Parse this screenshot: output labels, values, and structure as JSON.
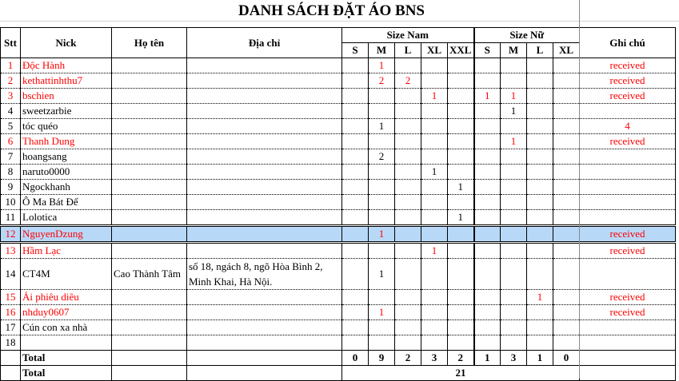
{
  "title": "DANH SÁCH ĐẶT ÁO BNS",
  "headers": {
    "stt": "Stt",
    "nick": "Nick",
    "name": "Họ tên",
    "address": "Địa chỉ",
    "size_nam": "Size Nam",
    "size_nu": "Size Nữ",
    "note": "Ghi chú",
    "nam_sizes": [
      "S",
      "M",
      "L",
      "XL",
      "XXL"
    ],
    "nu_sizes": [
      "S",
      "M",
      "L",
      "XL"
    ]
  },
  "colors": {
    "received": "#ff0000",
    "selected_row": "#b8d8f8"
  },
  "rows": [
    {
      "stt": "1",
      "nick": "Độc Hành",
      "name": "",
      "address": "",
      "sizes": [
        "",
        "1",
        "",
        "",
        "",
        "",
        "",
        "",
        ""
      ],
      "note": "received",
      "red": true
    },
    {
      "stt": "2",
      "nick": "kethattinhthu7",
      "name": "",
      "address": "",
      "sizes": [
        "",
        "2",
        "2",
        "",
        "",
        "",
        "",
        "",
        ""
      ],
      "note": "received",
      "red": true
    },
    {
      "stt": "3",
      "nick": "bschien",
      "name": "",
      "address": "",
      "sizes": [
        "",
        "",
        "",
        "1",
        "",
        "1",
        "1",
        "",
        ""
      ],
      "note": "received",
      "red": true
    },
    {
      "stt": "4",
      "nick": "sweetzarbie",
      "name": "",
      "address": "",
      "sizes": [
        "",
        "",
        "",
        "",
        "",
        "",
        "1",
        "",
        ""
      ],
      "note": "",
      "red": false
    },
    {
      "stt": "5",
      "nick": "tóc quéo",
      "name": "",
      "address": "",
      "sizes": [
        "",
        "1",
        "",
        "",
        "",
        "",
        "",
        "",
        ""
      ],
      "note": "4",
      "red": false
    },
    {
      "stt": "6",
      "nick": "Thanh Dung",
      "name": "",
      "address": "",
      "sizes": [
        "",
        "",
        "",
        "",
        "",
        "",
        "1",
        "",
        ""
      ],
      "note": "received",
      "red": true
    },
    {
      "stt": "7",
      "nick": "hoangsang",
      "name": "",
      "address": "",
      "sizes": [
        "",
        "2",
        "",
        "",
        "",
        "",
        "",
        "",
        ""
      ],
      "note": "",
      "red": false
    },
    {
      "stt": "8",
      "nick": "naruto0000",
      "name": "",
      "address": "",
      "sizes": [
        "",
        "",
        "",
        "1",
        "",
        "",
        "",
        "",
        ""
      ],
      "note": "",
      "red": false
    },
    {
      "stt": "9",
      "nick": "Ngockhanh",
      "name": "",
      "address": "",
      "sizes": [
        "",
        "",
        "",
        "",
        "1",
        "",
        "",
        "",
        ""
      ],
      "note": "",
      "red": false
    },
    {
      "stt": "10",
      "nick": "Ô Ma Bát Đế",
      "name": "",
      "address": "",
      "sizes": [
        "",
        "",
        "",
        "",
        "",
        "",
        "",
        "",
        ""
      ],
      "note": "",
      "red": false
    },
    {
      "stt": "11",
      "nick": "Lolotica",
      "name": "",
      "address": "",
      "sizes": [
        "",
        "",
        "",
        "",
        "1",
        "",
        "",
        "",
        ""
      ],
      "note": "",
      "red": false
    },
    {
      "stt": "12",
      "nick": "NguyenDzung",
      "name": "",
      "address": "",
      "sizes": [
        "",
        "1",
        "",
        "",
        "",
        "",
        "",
        "",
        ""
      ],
      "note": "received",
      "red": true,
      "selected": true
    },
    {
      "stt": "13",
      "nick": "Hầm Lạc",
      "name": "",
      "address": "",
      "sizes": [
        "",
        "",
        "",
        "1",
        "",
        "",
        "",
        "",
        ""
      ],
      "note": "received",
      "red": true
    },
    {
      "stt": "14",
      "nick": "CT4M",
      "name": "Cao Thành Tâm",
      "address": "số 18, ngách 8, ngõ Hòa Bình 2, Minh Khai, Hà Nội.",
      "sizes": [
        "",
        "1",
        "",
        "",
        "",
        "",
        "",
        "",
        ""
      ],
      "note": "",
      "red": false,
      "tall": true
    },
    {
      "stt": "15",
      "nick": "Ải phiêu diêu",
      "name": "",
      "address": "",
      "sizes": [
        "",
        "",
        "",
        "",
        "",
        "",
        "",
        "1",
        ""
      ],
      "note": "received",
      "red": true
    },
    {
      "stt": "16",
      "nick": "nhduy0607",
      "name": "",
      "address": "",
      "sizes": [
        "",
        "1",
        "",
        "",
        "",
        "",
        "",
        "",
        ""
      ],
      "note": "received",
      "red": true
    },
    {
      "stt": "17",
      "nick": "Cún con xa nhà",
      "name": "",
      "address": "",
      "sizes": [
        "",
        "",
        "",
        "",
        "",
        "",
        "",
        "",
        ""
      ],
      "note": "",
      "red": false
    },
    {
      "stt": "18",
      "nick": "",
      "name": "",
      "address": "",
      "sizes": [
        "",
        "",
        "",
        "",
        "",
        "",
        "",
        "",
        ""
      ],
      "note": "",
      "red": false
    }
  ],
  "total": {
    "label": "Total",
    "sizes": [
      "0",
      "9",
      "2",
      "3",
      "2",
      "1",
      "3",
      "1",
      "0"
    ]
  },
  "grand_total": {
    "label": "Total",
    "value": "21"
  }
}
